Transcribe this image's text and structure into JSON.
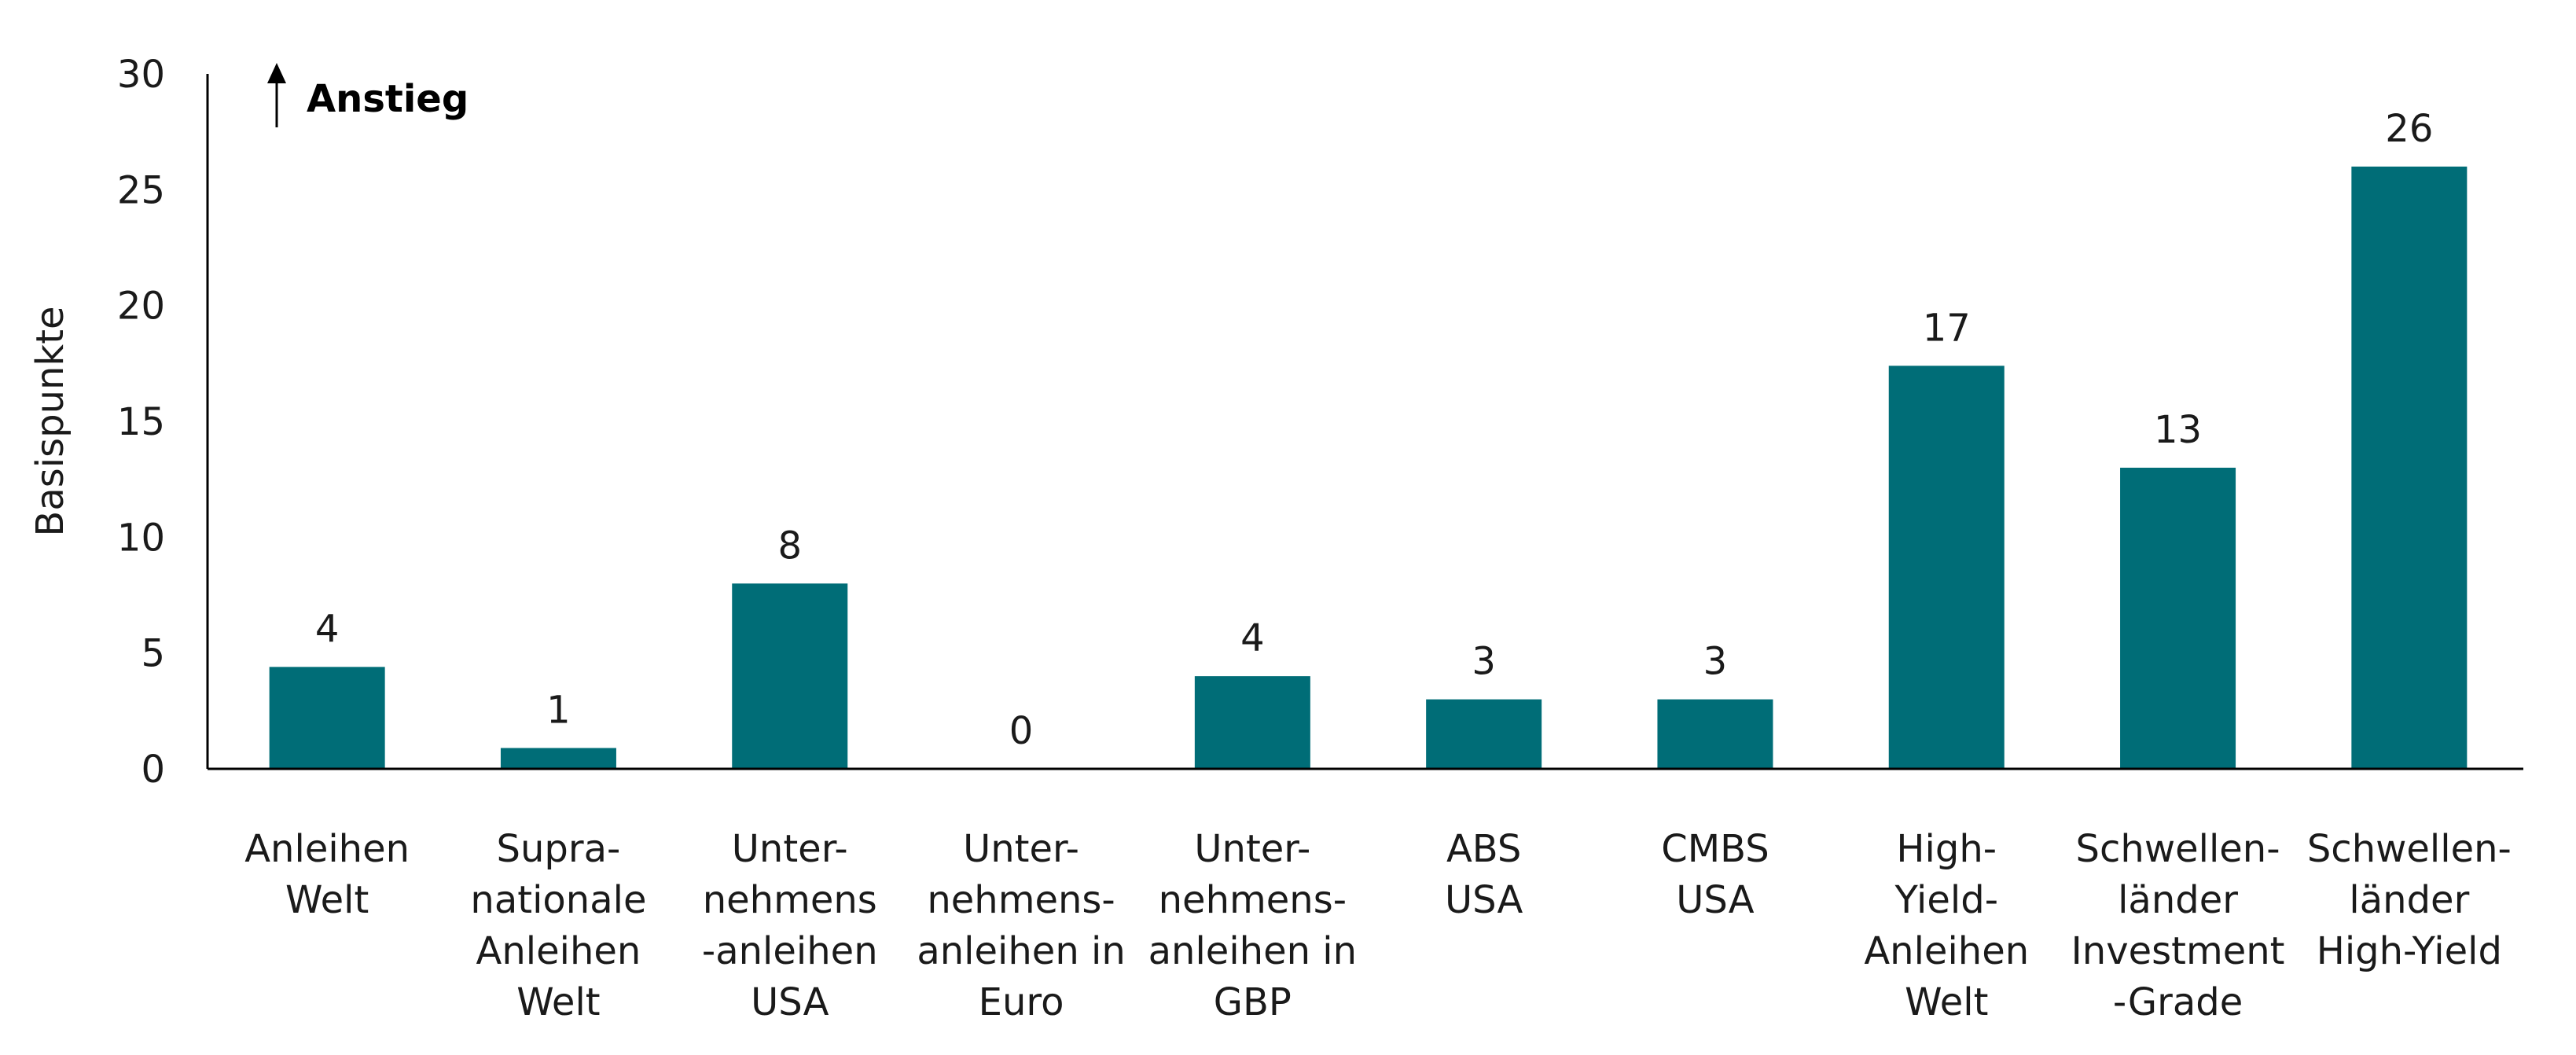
{
  "chart_data": {
    "type": "bar",
    "title": "",
    "ylabel": "Basispunkte",
    "xlabel": "",
    "ylim": [
      0,
      30
    ],
    "yticks": [
      0,
      5,
      10,
      15,
      20,
      25,
      30
    ],
    "grid": false,
    "annotation": "Anstieg",
    "bar_color": "#006d77",
    "categories": [
      [
        "Anleihen",
        "Welt"
      ],
      [
        "Supra-",
        "nationale",
        "Anleihen",
        "Welt"
      ],
      [
        "Unter-",
        "nehmens",
        "-anleihen",
        "USA"
      ],
      [
        "Unter-",
        "nehmens-",
        "anleihen in",
        "Euro"
      ],
      [
        "Unter-",
        "nehmens-",
        "anleihen in",
        "GBP"
      ],
      [
        "ABS",
        "USA"
      ],
      [
        "CMBS",
        "USA"
      ],
      [
        "High-",
        "Yield-",
        "Anleihen",
        "Welt"
      ],
      [
        "Schwellen-",
        "länder",
        "Investment",
        "-Grade"
      ],
      [
        "Schwellen-",
        "länder",
        "High-Yield"
      ]
    ],
    "values": [
      4.4,
      0.9,
      8.0,
      0.0,
      4.0,
      3.0,
      3.0,
      17.4,
      13.0,
      26.0
    ],
    "data_labels": [
      "4",
      "1",
      "8",
      "0",
      "4",
      "3",
      "3",
      "17",
      "13",
      "26"
    ]
  }
}
